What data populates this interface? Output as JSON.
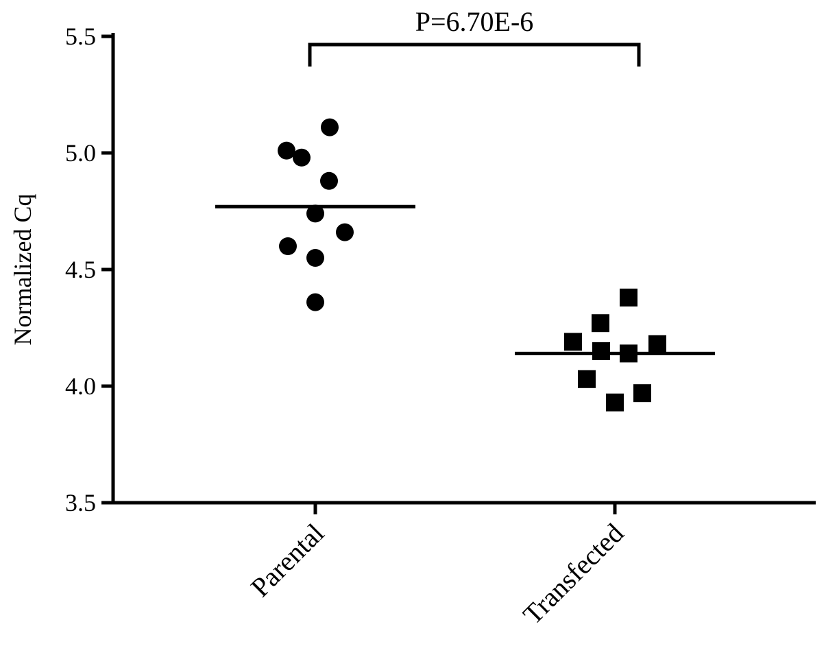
{
  "chart_data": {
    "type": "scatter",
    "title": "",
    "xlabel": "",
    "ylabel": "Normalized Cq",
    "ylim": [
      3.5,
      5.5
    ],
    "yticks": [
      "3.5",
      "4.0",
      "4.5",
      "5.0",
      "5.5"
    ],
    "categories": [
      "Parental",
      "Transfected"
    ],
    "grid": false,
    "series": [
      {
        "category": "Parental",
        "marker": "circle",
        "mean": 4.77,
        "values": [
          5.11,
          5.01,
          4.98,
          4.88,
          4.74,
          4.66,
          4.6,
          4.55,
          4.36
        ]
      },
      {
        "category": "Transfected",
        "marker": "square",
        "mean": 4.14,
        "values": [
          4.38,
          4.27,
          4.19,
          4.18,
          4.15,
          4.14,
          4.03,
          3.97,
          3.93
        ]
      }
    ],
    "annotation": {
      "text": "P=6.70E-6",
      "between": [
        "Parental",
        "Transfected"
      ]
    },
    "colors": {
      "marker": "#000000",
      "axis": "#000000"
    }
  }
}
